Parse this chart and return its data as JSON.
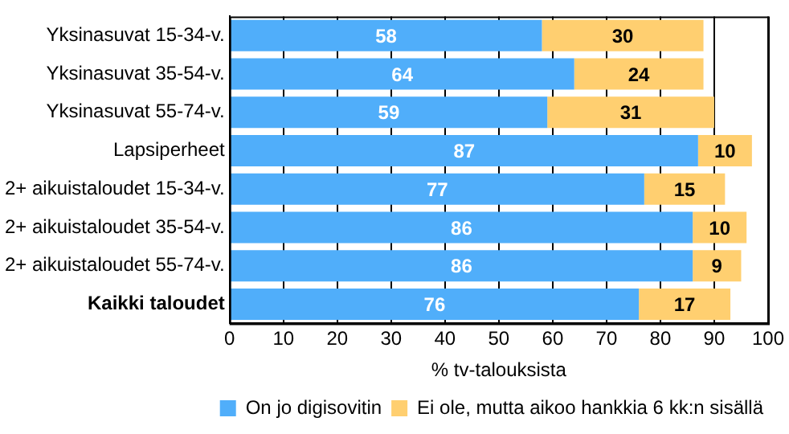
{
  "chart_data": {
    "type": "bar",
    "orientation": "horizontal",
    "stacked": true,
    "categories": [
      "Yksinasuvat 15-34-v.",
      "Yksinasuvat 35-54-v.",
      "Yksinasuvat 55-74-v.",
      "Lapsiperheet",
      "2+ aikuistaloudet 15-34-v.",
      "2+ aikuistaloudet 35-54-v.",
      "2+ aikuistaloudet 55-74-v.",
      "Kaikki taloudet"
    ],
    "series": [
      {
        "name": "On jo digisovitin",
        "color": "#50aefa",
        "values": [
          58,
          64,
          59,
          87,
          77,
          86,
          86,
          76
        ]
      },
      {
        "name": "Ei ole, mutta aikoo hankkia 6 kk:n sisällä",
        "color": "#ffcf70",
        "values": [
          30,
          24,
          31,
          10,
          15,
          10,
          9,
          17
        ]
      }
    ],
    "xlabel": "% tv-talouksista",
    "xlim": [
      0,
      100
    ],
    "xticks": [
      0,
      10,
      20,
      30,
      40,
      50,
      60,
      70,
      80,
      90,
      100
    ],
    "grid": "x",
    "legend": "bottom",
    "data_labels": true
  }
}
